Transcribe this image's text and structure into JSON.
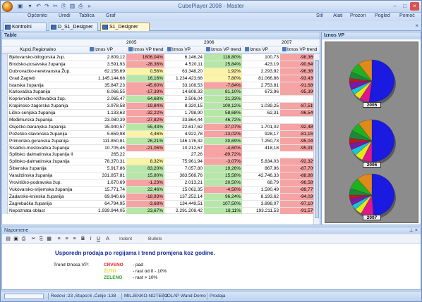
{
  "app": {
    "title": "CubePlayer 2008 - Master"
  },
  "menu": {
    "left": [
      "Općenito",
      "Uredi",
      "Tablica",
      "Graf"
    ],
    "right": [
      "Stil",
      "Alati",
      "Prozori",
      "Pogled",
      "Pomoć"
    ]
  },
  "tabs": [
    "Kontrolni panel",
    "D_S1_Designer",
    "S1_Designer"
  ],
  "table": {
    "header": "Table",
    "years": [
      "2005",
      "2006",
      "2007"
    ],
    "col_region": "Kupci.Regionalno",
    "col_amount": "Iznos VP",
    "col_trend": "Iznos VP trend",
    "rows": [
      {
        "name": "Bjelovarsko-bilogorska žup.",
        "v05": "2.809,12",
        "t05": "1806,04%",
        "c05": "red",
        "v06": "6.146,24",
        "t06": "118,80%",
        "c06": "grn",
        "v07": "100,73",
        "t07": "-98,36%",
        "c07": "red"
      },
      {
        "name": "Brodsko-posavska županija",
        "v05": "3.591,93",
        "t05": "-28,36%",
        "c05": "red",
        "v06": "4.520,11",
        "t06": "25,84%",
        "c06": "grn",
        "v07": "423,19",
        "t07": "-90,64%",
        "c07": "red"
      },
      {
        "name": "Dubrovačko-neretvanska Žup.",
        "v05": "62.156,69",
        "t05": "0,56%",
        "c05": "yel",
        "v06": "63.348,20",
        "t06": "1,92%",
        "c06": "yel",
        "v07": "2.293,92",
        "t07": "-96,38%",
        "c07": "red"
      },
      {
        "name": "Grad Zagreb",
        "v05": "1.145.144,68",
        "t05": "16,16%",
        "c05": "grn",
        "v06": "1.234.423,68",
        "t06": "7,80%",
        "c06": "yel",
        "v07": "81.066,86",
        "t07": "-93,43%",
        "c07": "red"
      },
      {
        "name": "Istarska županija",
        "v05": "35.847,23",
        "t05": "-45,60%",
        "c05": "red",
        "v06": "33.108,53",
        "t06": "-7,64%",
        "c06": "red",
        "v07": "2.753,81",
        "t07": "-91,68%",
        "c07": "red"
      },
      {
        "name": "Karlovačka županija",
        "v05": "8.066,55",
        "t05": "-17,39%",
        "c05": "red",
        "v06": "14.608,33",
        "t06": "81,10%",
        "c06": "grn",
        "v07": "673,96",
        "t07": "-95,39%",
        "c07": "red"
      },
      {
        "name": "Koprivničko-križevačka žup.",
        "v05": "2.065,47",
        "t05": "64,68%",
        "c05": "grn",
        "v06": "2.506,04",
        "t06": "21,33%",
        "c06": "grn",
        "v07": "",
        "t07": "",
        "c07": ""
      },
      {
        "name": "Krapinsko-zagorska županija",
        "v05": "3.978,58",
        "t05": "-19,84%",
        "c05": "red",
        "v06": "8.320,15",
        "t06": "109,12%",
        "c06": "grn",
        "v07": "1.039,25",
        "t07": "-87,51%",
        "c07": "red"
      },
      {
        "name": "Ličko-senjska županija",
        "v05": "1.133,63",
        "t05": "-32,22%",
        "c05": "red",
        "v06": "1.798,90",
        "t06": "58,68%",
        "c06": "grn",
        "v07": "62,31",
        "t07": "-96,54%",
        "c07": "red"
      },
      {
        "name": "Međimurska županija",
        "v05": "23.080,39",
        "t05": "-27,82%",
        "c05": "red",
        "v06": "33.864,44",
        "t06": "46,72%",
        "c06": "grn",
        "v07": "",
        "t07": "",
        "c07": ""
      },
      {
        "name": "Osječko-baranjska županija",
        "v05": "35.940,57",
        "t05": "55,43%",
        "c05": "grn",
        "v06": "22.617,62",
        "t06": "-37,07%",
        "c06": "red",
        "v07": "1.701,02",
        "t07": "-92,48%",
        "c07": "red"
      },
      {
        "name": "Požeško-slavonska županija",
        "v05": "5.659,98",
        "t05": "4,46%",
        "c05": "yel",
        "v06": "4.922,78",
        "t06": "-13,02%",
        "c06": "red",
        "v07": "928,17",
        "t07": "-81,15%",
        "c07": "red"
      },
      {
        "name": "Primorsko-goranska županija",
        "v05": "111.850,81",
        "t05": "26,21%",
        "c05": "grn",
        "v06": "146.176,32",
        "t06": "30,69%",
        "c06": "grn",
        "v07": "7.250,73",
        "t07": "-95,04%",
        "c07": "red"
      },
      {
        "name": "Sisačko-moslovačka županija",
        "v05": "10.705,45",
        "t05": "-21,06%",
        "c05": "red",
        "v06": "10.212,67",
        "t06": "-4,60%",
        "c06": "red",
        "v07": "418,18",
        "t07": "-95,91%",
        "c07": "red"
      },
      {
        "name": "Splitsko dalmatinska županija II",
        "v05": "265,22",
        "t05": "",
        "c05": "",
        "v06": "27,26",
        "t06": "-89,72%",
        "c06": "red",
        "v07": "",
        "t07": "",
        "c07": ""
      },
      {
        "name": "Splitsko-dalmatinska županija",
        "v05": "78.370,31",
        "t05": "8,32%",
        "c05": "yel",
        "v06": "75.961,94",
        "t06": "-3,07%",
        "c06": "red",
        "v07": "5.834,03",
        "t07": "-92,32%",
        "c07": "red"
      },
      {
        "name": "Šibenska županija",
        "v05": "5.917,86",
        "t05": "83,20%",
        "c05": "grn",
        "v06": "7.057,80",
        "t06": "19,26%",
        "c06": "grn",
        "v07": "867,96",
        "t07": "-87,70%",
        "c07": "red"
      },
      {
        "name": "Varaždinska županija",
        "v05": "331.857,81",
        "t05": "15,80%",
        "c05": "grn",
        "v06": "383.568,76",
        "t06": "15,58%",
        "c06": "grn",
        "v07": "42.746,33",
        "t07": "-88,86%",
        "c07": "red"
      },
      {
        "name": "Vrovitičko-podravska žup.",
        "v05": "1.670,69",
        "t05": "-1,23%",
        "c05": "red",
        "v06": "2.013,21",
        "t06": "20,50%",
        "c06": "grn",
        "v07": "68,79",
        "t07": "-96,58%",
        "c07": "red"
      },
      {
        "name": "Vukovarsko-srijemska županija",
        "v05": "15.771,74",
        "t05": "22,46%",
        "c05": "grn",
        "v06": "15.062,35",
        "t06": "-4,50%",
        "c06": "red",
        "v07": "1.590,49",
        "t07": "-89,77%",
        "c07": "red"
      },
      {
        "name": "Zadarsko-kninska županija",
        "v05": "69.940,66",
        "t05": "-18,93%",
        "c05": "red",
        "v06": "137.252,14",
        "t06": "96,24%",
        "c06": "grn",
        "v07": "8.193,62",
        "t07": "-94,03%",
        "c07": "red"
      },
      {
        "name": "Zagrebačka županija",
        "v05": "64.794,95",
        "t05": "-3,68%",
        "c05": "red",
        "v06": "134.449,51",
        "t06": "107,50%",
        "c06": "grn",
        "v07": "3.898,07",
        "t07": "-97,10%",
        "c07": "red"
      },
      {
        "name": "Nepoznata oblast",
        "v05": "1.939.944,05",
        "t05": "23,67%",
        "c05": "grn",
        "v06": "2.291.208,42",
        "t06": "18,11%",
        "c06": "grn",
        "v07": "193.211,53",
        "t07": "-91,57%",
        "c07": "red"
      }
    ]
  },
  "chart": {
    "header": "Iznos VP",
    "labels": [
      "2005",
      "2006",
      "2007"
    ],
    "slice_colors": [
      "#1a1ae0",
      "#e0178a",
      "#e6e61a",
      "#19c7d9",
      "#7a1aa8",
      "#c21a1a",
      "#1a8a3a",
      "#20b020",
      "#e08a1a"
    ],
    "slices": [
      [
        0.52,
        0.07,
        0.05,
        0.04,
        0.06,
        0.03,
        0.05,
        0.08,
        0.1
      ],
      [
        0.5,
        0.07,
        0.06,
        0.05,
        0.05,
        0.04,
        0.06,
        0.07,
        0.1
      ],
      [
        0.49,
        0.09,
        0.05,
        0.04,
        0.05,
        0.03,
        0.05,
        0.09,
        0.11
      ]
    ]
  },
  "notes": {
    "header": "Napomene",
    "toolbar": {
      "indent": "Indent",
      "bullets": "Bullets"
    },
    "title": "Usporedn prodaja po regijama i trend promjena koz godine.",
    "label": "Trend Iznosa VP:",
    "legend": [
      {
        "name": "CRVENO",
        "desc": "- pad",
        "color": "#e02020"
      },
      {
        "name": "ŽUTO",
        "desc": "- rast od 0 - 10%",
        "color": "#e8d21a"
      },
      {
        "name": "ZELENO",
        "desc": "- rast > 10%",
        "color": "#2aa02a"
      }
    ]
  },
  "status": {
    "rows": "Redovi :23 ,Stupci:6 ,Ćelije :138",
    "server": "MILJENKO-NOTEBO",
    "cube": "IOLAP Wand Demo",
    "measure": "Prodaja"
  }
}
